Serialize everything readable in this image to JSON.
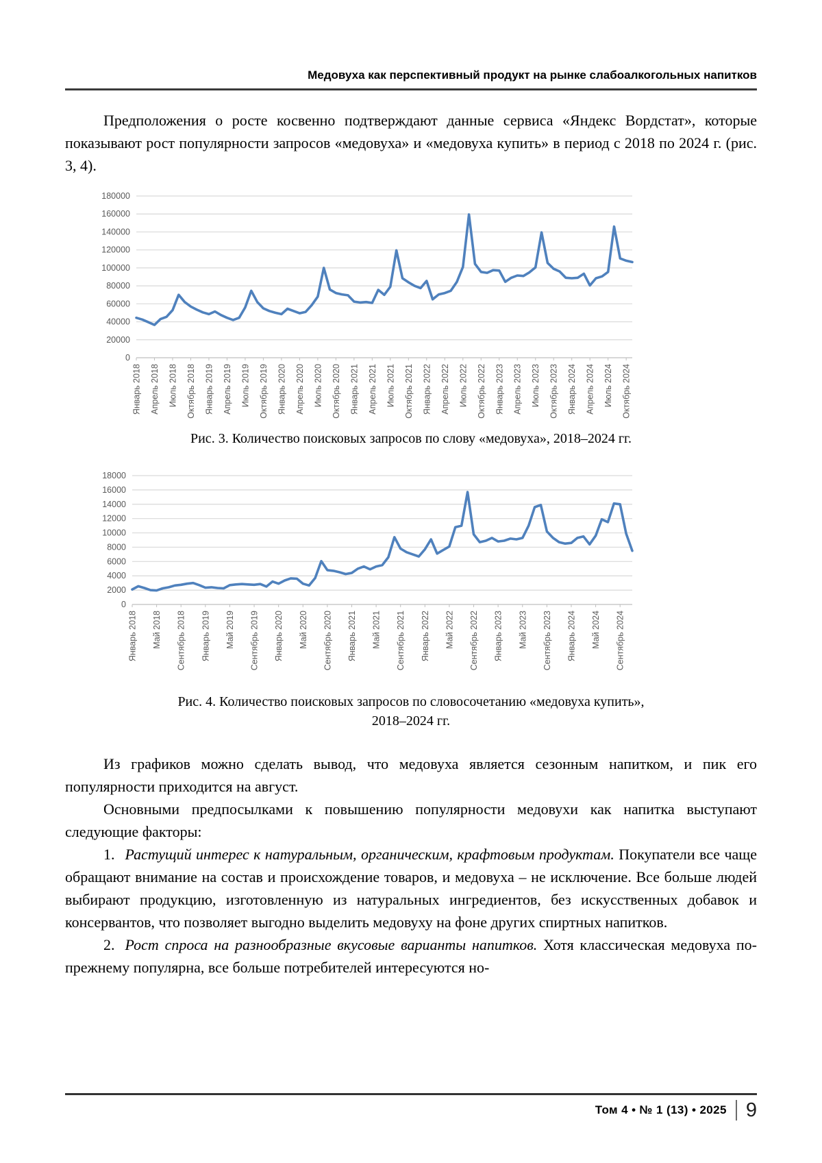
{
  "header": {
    "running_title": "Медовуха как перспективный продукт на рынке слабоалкогольных напитков"
  },
  "intro_paragraph": "Предположения о росте косвенно подтверждают данные сервиса «Яндекс Вордстат», которые показывают рост популярности запросов «медовуха» и «медовуха купить» в период с 2018 по 2024 г. (рис. 3, 4).",
  "figures": {
    "fig3": {
      "caption": "Рис. 3. Количество поисковых запросов по слову «медовуха», 2018–2024 гг."
    },
    "fig4": {
      "caption_line1": "Рис. 4. Количество поисковых запросов по словосочетанию «медовуха купить»,",
      "caption_line2": "2018–2024 гг."
    }
  },
  "body": {
    "p1": "Из графиков можно сделать вывод, что медовуха является сезонным напитком, и пик его популярности приходится на август.",
    "p2": "Основными предпосылками к повышению популярности медовухи как напитка выступают следующие факторы:",
    "list": [
      {
        "number": "1.",
        "lead_italic": "Растущий интерес к натуральным, органическим, крафтовым продуктам.",
        "text": "Покупатели все чаще обращают внимание на состав и происхождение товаров, и медовуха – не исключение. Все больше людей выбирают продукцию, изготовленную из натуральных ингредиентов, без искусственных добавок и консервантов, что позволяет выгодно выделить медовуху на фоне других спиртных напитков."
      },
      {
        "number": "2.",
        "lead_italic": "Рост спроса на разнообразные вкусовые варианты напитков.",
        "text": "Хотя классическая медовуха по-прежнему популярна, все больше потребителей интересуются но-"
      }
    ]
  },
  "footer": {
    "issue_info": "Том 4 • № 1 (13) • 2025",
    "page_number": "9"
  },
  "colors": {
    "line_blue": "#4F81BD",
    "grid_gray": "#D9D9D9",
    "axis_gray": "#BFBFBF",
    "tick_text_gray": "#595959"
  },
  "chart_data": [
    {
      "type": "line",
      "title": "Рис. 3. Количество поисковых запросов по слову «медовуха», 2018–2024 гг.",
      "x_range": "Январь 2018 – Ноябрь 2024, помесячно",
      "ylim": [
        0,
        180000
      ],
      "ytick_step": 20000,
      "yticks": [
        0,
        20000,
        40000,
        60000,
        80000,
        100000,
        120000,
        140000,
        160000,
        180000
      ],
      "tick_every": 3,
      "x_tick_labels": [
        "Январь 2018",
        "Апрель 2018",
        "Июль 2018",
        "Октябрь 2018",
        "Январь 2019",
        "Апрель 2019",
        "Июль 2019",
        "Октябрь 2019",
        "Январь 2020",
        "Апрель 2020",
        "Июль 2020",
        "Октябрь 2020",
        "Январь 2021",
        "Апрель 2021",
        "Июль 2021",
        "Октябрь 2021",
        "Январь 2022",
        "Апрель 2022",
        "Июль 2022",
        "Октябрь 2022",
        "Январь 2023",
        "Апрель 2023",
        "Июль 2023",
        "Октябрь 2023",
        "Январь 2024",
        "Апрель 2024",
        "Июль 2024",
        "Октябрь 2024"
      ],
      "values": [
        44500,
        42500,
        39500,
        36500,
        43000,
        45500,
        53000,
        70000,
        62000,
        57000,
        53500,
        50500,
        48500,
        51500,
        47500,
        44500,
        42000,
        44500,
        56000,
        74500,
        62000,
        55000,
        52000,
        50000,
        48500,
        54500,
        52000,
        49500,
        51000,
        58500,
        68000,
        100000,
        76000,
        72000,
        70500,
        69500,
        62500,
        61500,
        62000,
        61000,
        75500,
        70000,
        79000,
        119500,
        88500,
        84000,
        80000,
        77500,
        85500,
        65000,
        70500,
        72000,
        74500,
        84500,
        101000,
        159500,
        104500,
        95500,
        94500,
        97500,
        97000,
        84500,
        89000,
        91500,
        91000,
        95000,
        100500,
        139500,
        105500,
        99000,
        96000,
        89000,
        88500,
        89000,
        93500,
        80500,
        88500,
        90500,
        95500,
        146000,
        110500,
        108000,
        106500
      ],
      "line_color": "#4F81BD",
      "grid": true,
      "legend": "none"
    },
    {
      "type": "line",
      "title": "Рис. 4. Количество поисковых запросов по словосочетанию «медовуха купить», 2018–2024 гг.",
      "x_range": "Январь 2018 – Ноябрь 2024, помесячно",
      "ylim": [
        0,
        18000
      ],
      "ytick_step": 2000,
      "yticks": [
        0,
        2000,
        4000,
        6000,
        8000,
        10000,
        12000,
        14000,
        16000,
        18000
      ],
      "tick_every": 4,
      "x_tick_labels": [
        "Январь 2018",
        "Май 2018",
        "Сентябрь 2018",
        "Январь 2019",
        "Май 2019",
        "Сентябрь 2019",
        "Январь 2020",
        "Май 2020",
        "Сентябрь 2020",
        "Январь 2021",
        "Май 2021",
        "Сентябрь 2021",
        "Январь 2022",
        "Май 2022",
        "Сентябрь 2022",
        "Январь 2023",
        "Май 2023",
        "Сентябрь 2023",
        "Январь 2024",
        "Май 2024",
        "Сентябрь 2024"
      ],
      "values": [
        2100,
        2550,
        2300,
        2000,
        1950,
        2250,
        2400,
        2650,
        2750,
        2900,
        3000,
        2700,
        2350,
        2400,
        2300,
        2250,
        2700,
        2800,
        2850,
        2800,
        2750,
        2850,
        2500,
        3200,
        2900,
        3350,
        3650,
        3600,
        2900,
        2650,
        3700,
        6050,
        4800,
        4700,
        4500,
        4250,
        4400,
        5000,
        5300,
        4900,
        5300,
        5500,
        6600,
        9400,
        7800,
        7300,
        7000,
        6700,
        7700,
        9100,
        7100,
        7600,
        8100,
        10800,
        11000,
        15700,
        9800,
        8700,
        8900,
        9300,
        8800,
        8900,
        9200,
        9100,
        9300,
        11000,
        13600,
        13900,
        10200,
        9300,
        8700,
        8500,
        8600,
        9300,
        9500,
        8400,
        9600,
        11900,
        11500,
        14100,
        14000,
        9900,
        7500
      ],
      "line_color": "#4F81BD",
      "grid": true,
      "legend": "none"
    }
  ]
}
